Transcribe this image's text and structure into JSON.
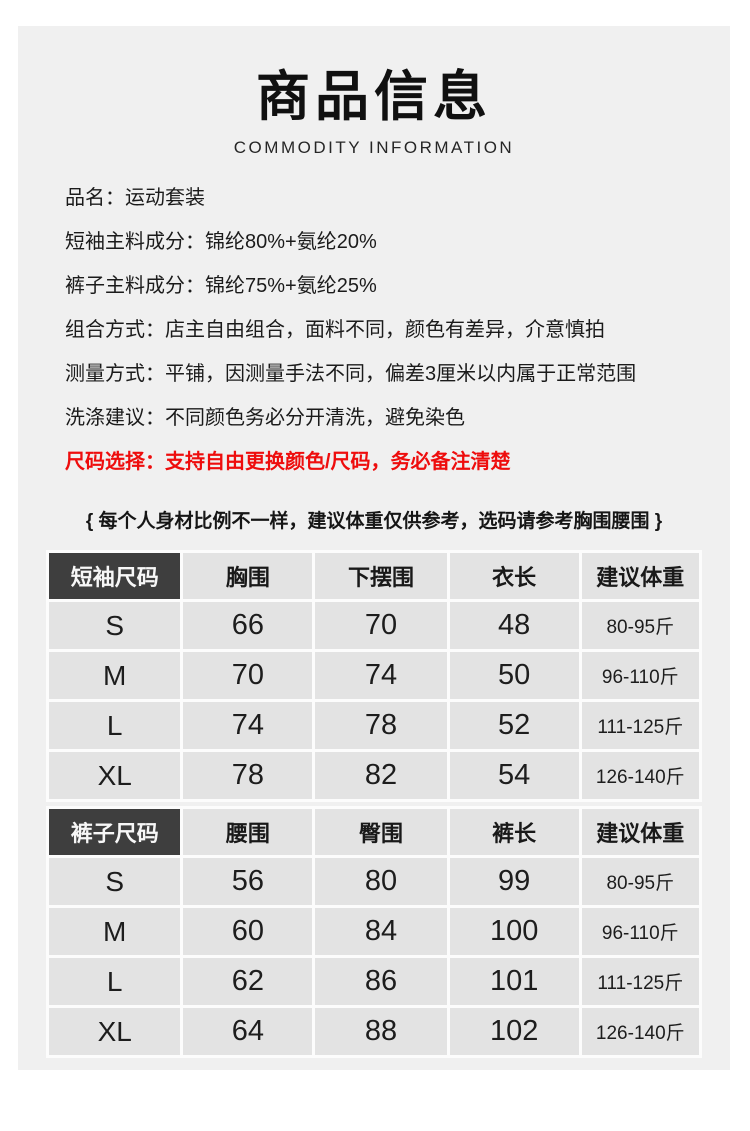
{
  "header": {
    "title": "商品信息",
    "subtitle": "COMMODITY INFORMATION"
  },
  "info_lines": [
    "品名：运动套装",
    "短袖主料成分：锦纶80%+氨纶20%",
    "裤子主料成分：锦纶75%+氨纶25%",
    "组合方式：店主自由组合，面料不同，颜色有差异，介意慎拍",
    "测量方式：平铺，因测量手法不同，偏差3厘米以内属于正常范围",
    "洗涤建议：不同颜色务必分开清洗，避免染色"
  ],
  "size_notice": "尺码选择：支持自由更换颜色/尺码，务必备注清楚",
  "note": "{ 每个人身材比例不一样，建议体重仅供参考，选码请参考胸围腰围 }",
  "shirt_table": {
    "header": [
      "短袖尺码",
      "胸围",
      "下摆围",
      "衣长",
      "建议体重"
    ],
    "rows": [
      [
        "S",
        "66",
        "70",
        "48",
        "80-95斤"
      ],
      [
        "M",
        "70",
        "74",
        "50",
        "96-110斤"
      ],
      [
        "L",
        "74",
        "78",
        "52",
        "111-125斤"
      ],
      [
        "XL",
        "78",
        "82",
        "54",
        "126-140斤"
      ]
    ]
  },
  "pants_table": {
    "header": [
      "裤子尺码",
      "腰围",
      "臀围",
      "裤长",
      "建议体重"
    ],
    "rows": [
      [
        "S",
        "56",
        "80",
        "99",
        "80-95斤"
      ],
      [
        "M",
        "60",
        "84",
        "100",
        "96-110斤"
      ],
      [
        "L",
        "62",
        "86",
        "101",
        "111-125斤"
      ],
      [
        "XL",
        "64",
        "88",
        "102",
        "126-140斤"
      ]
    ]
  },
  "colors": {
    "page_background": "#ffffff",
    "card_background": "#f0f0f0",
    "table_cell_background": "#e3e3e3",
    "table_header_dark": "#3e3e3e",
    "notice_red": "#ee0d0d"
  }
}
